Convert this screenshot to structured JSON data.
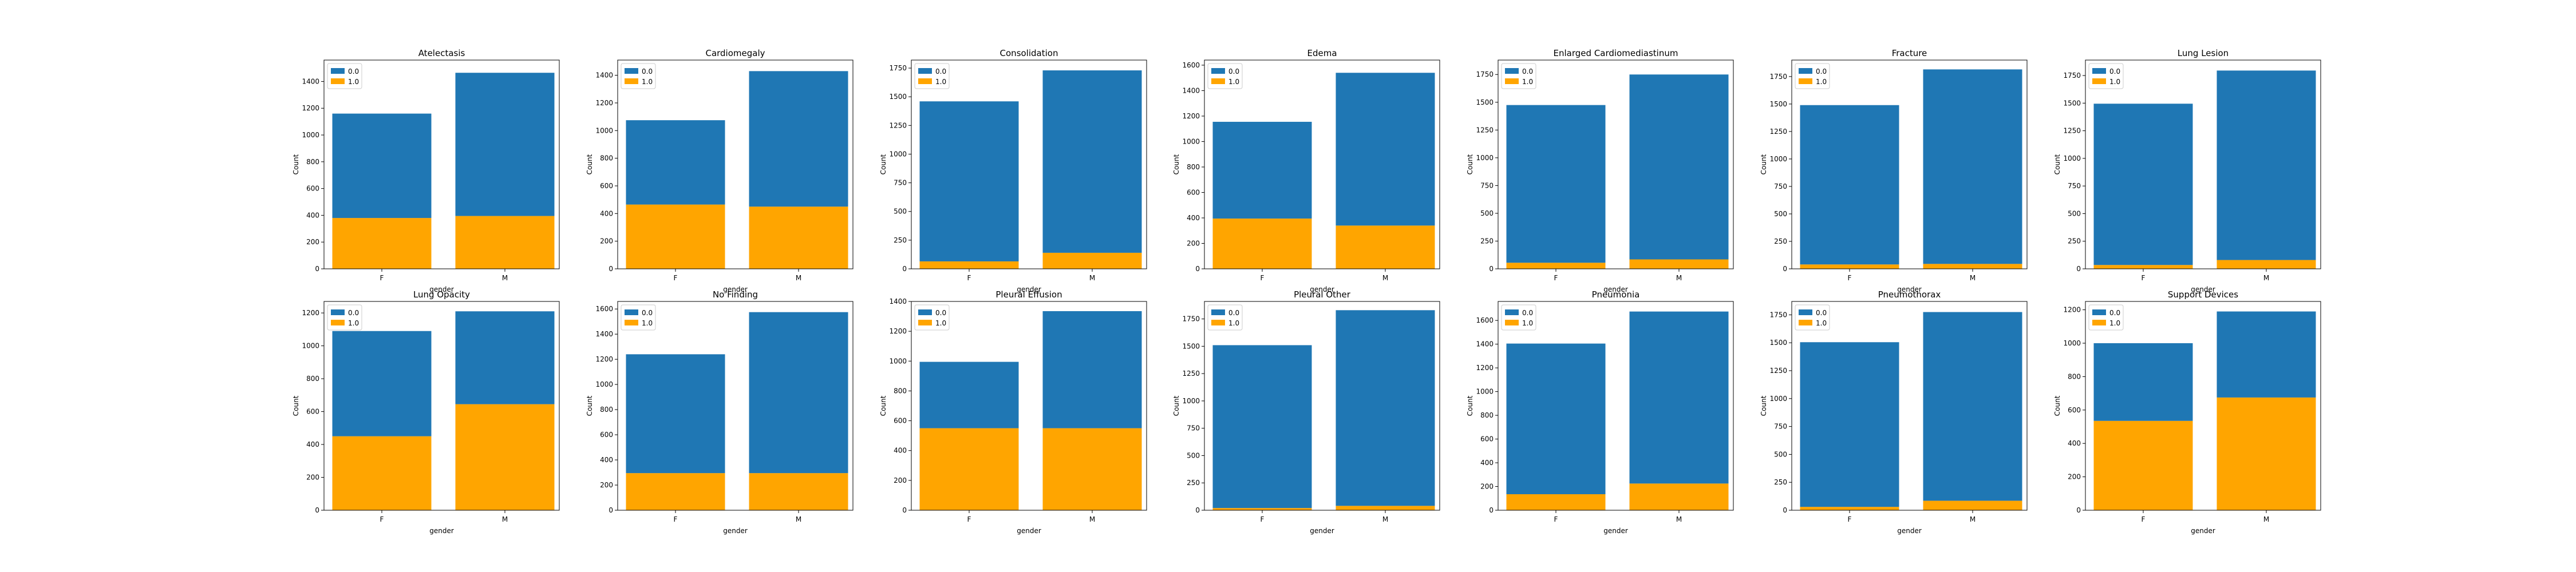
{
  "figure": {
    "common": {
      "xlabel": "gender",
      "ylabel": "Count",
      "categories": [
        "F",
        "M"
      ],
      "legend": [
        {
          "label": "0.0",
          "color": "#1f77b4"
        },
        {
          "label": "1.0",
          "color": "#ffa500"
        }
      ],
      "legend_placement": "upper-left",
      "grid": false
    }
  },
  "chart_data": [
    {
      "type": "bar",
      "stacked": true,
      "title": "Atelectasis",
      "xlabel": "gender",
      "ylabel": "Count",
      "categories": [
        "F",
        "M"
      ],
      "series": [
        {
          "name": "0.0",
          "values": [
            780,
            1070
          ],
          "color": "#1f77b4"
        },
        {
          "name": "1.0",
          "values": [
            380,
            395
          ],
          "color": "#ffa500"
        }
      ],
      "ylim": [
        0,
        1560
      ],
      "yticks": [
        0,
        200,
        400,
        600,
        800,
        1000,
        1200,
        1400
      ]
    },
    {
      "type": "bar",
      "stacked": true,
      "title": "Cardiomegaly",
      "xlabel": "gender",
      "ylabel": "Count",
      "categories": [
        "F",
        "M"
      ],
      "series": [
        {
          "name": "0.0",
          "values": [
            610,
            980
          ],
          "color": "#1f77b4"
        },
        {
          "name": "1.0",
          "values": [
            465,
            450
          ],
          "color": "#ffa500"
        }
      ],
      "ylim": [
        0,
        1510
      ],
      "yticks": [
        0,
        200,
        400,
        600,
        800,
        1000,
        1200,
        1400
      ]
    },
    {
      "type": "bar",
      "stacked": true,
      "title": "Consolidation",
      "xlabel": "gender",
      "ylabel": "Count",
      "categories": [
        "F",
        "M"
      ],
      "series": [
        {
          "name": "0.0",
          "values": [
            1395,
            1590
          ],
          "color": "#1f77b4"
        },
        {
          "name": "1.0",
          "values": [
            65,
            140
          ],
          "color": "#ffa500"
        }
      ],
      "ylim": [
        0,
        1820
      ],
      "yticks": [
        0,
        250,
        500,
        750,
        1000,
        1250,
        1500,
        1750
      ]
    },
    {
      "type": "bar",
      "stacked": true,
      "title": "Edema",
      "xlabel": "gender",
      "ylabel": "Count",
      "categories": [
        "F",
        "M"
      ],
      "series": [
        {
          "name": "0.0",
          "values": [
            760,
            1200
          ],
          "color": "#1f77b4"
        },
        {
          "name": "1.0",
          "values": [
            395,
            340
          ],
          "color": "#ffa500"
        }
      ],
      "ylim": [
        0,
        1640
      ],
      "yticks": [
        0,
        200,
        400,
        600,
        800,
        1000,
        1200,
        1400,
        1600
      ]
    },
    {
      "type": "bar",
      "stacked": true,
      "title": "Enlarged Cardiomediastinum",
      "xlabel": "gender",
      "ylabel": "Count",
      "categories": [
        "F",
        "M"
      ],
      "series": [
        {
          "name": "0.0",
          "values": [
            1420,
            1665
          ],
          "color": "#1f77b4"
        },
        {
          "name": "1.0",
          "values": [
            55,
            85
          ],
          "color": "#ffa500"
        }
      ],
      "ylim": [
        0,
        1880
      ],
      "yticks": [
        0,
        250,
        500,
        750,
        1000,
        1250,
        1500,
        1750
      ]
    },
    {
      "type": "bar",
      "stacked": true,
      "title": "Fracture",
      "xlabel": "gender",
      "ylabel": "Count",
      "categories": [
        "F",
        "M"
      ],
      "series": [
        {
          "name": "0.0",
          "values": [
            1450,
            1770
          ],
          "color": "#1f77b4"
        },
        {
          "name": "1.0",
          "values": [
            40,
            45
          ],
          "color": "#ffa500"
        }
      ],
      "ylim": [
        0,
        1900
      ],
      "yticks": [
        0,
        250,
        500,
        750,
        1000,
        1250,
        1500,
        1750
      ]
    },
    {
      "type": "bar",
      "stacked": true,
      "title": "Lung Lesion",
      "xlabel": "gender",
      "ylabel": "Count",
      "categories": [
        "F",
        "M"
      ],
      "series": [
        {
          "name": "0.0",
          "values": [
            1460,
            1715
          ],
          "color": "#1f77b4"
        },
        {
          "name": "1.0",
          "values": [
            35,
            80
          ],
          "color": "#ffa500"
        }
      ],
      "ylim": [
        0,
        1890
      ],
      "yticks": [
        0,
        250,
        500,
        750,
        1000,
        1250,
        1500,
        1750
      ]
    },
    {
      "type": "bar",
      "stacked": true,
      "title": "Lung Opacity",
      "xlabel": "gender",
      "ylabel": "Count",
      "categories": [
        "F",
        "M"
      ],
      "series": [
        {
          "name": "0.0",
          "values": [
            640,
            565
          ],
          "color": "#1f77b4"
        },
        {
          "name": "1.0",
          "values": [
            450,
            645
          ],
          "color": "#ffa500"
        }
      ],
      "ylim": [
        0,
        1270
      ],
      "yticks": [
        0,
        200,
        400,
        600,
        800,
        1000,
        1200
      ]
    },
    {
      "type": "bar",
      "stacked": true,
      "title": "No Finding",
      "xlabel": "gender",
      "ylabel": "Count",
      "categories": [
        "F",
        "M"
      ],
      "series": [
        {
          "name": "0.0",
          "values": [
            945,
            1280
          ],
          "color": "#1f77b4"
        },
        {
          "name": "1.0",
          "values": [
            295,
            295
          ],
          "color": "#ffa500"
        }
      ],
      "ylim": [
        0,
        1660
      ],
      "yticks": [
        0,
        200,
        400,
        600,
        800,
        1000,
        1200,
        1400,
        1600
      ]
    },
    {
      "type": "bar",
      "stacked": true,
      "title": "Pleural Effusion",
      "xlabel": "gender",
      "ylabel": "Count",
      "categories": [
        "F",
        "M"
      ],
      "series": [
        {
          "name": "0.0",
          "values": [
            445,
            785
          ],
          "color": "#1f77b4"
        },
        {
          "name": "1.0",
          "values": [
            550,
            550
          ],
          "color": "#ffa500"
        }
      ],
      "ylim": [
        0,
        1400
      ],
      "yticks": [
        0,
        200,
        400,
        600,
        800,
        1000,
        1200,
        1400
      ]
    },
    {
      "type": "bar",
      "stacked": true,
      "title": "Pleural Other",
      "xlabel": "gender",
      "ylabel": "Count",
      "categories": [
        "F",
        "M"
      ],
      "series": [
        {
          "name": "0.0",
          "values": [
            1490,
            1790
          ],
          "color": "#1f77b4"
        },
        {
          "name": "1.0",
          "values": [
            20,
            40
          ],
          "color": "#ffa500"
        }
      ],
      "ylim": [
        0,
        1910
      ],
      "yticks": [
        0,
        250,
        500,
        750,
        1000,
        1250,
        1500,
        1750
      ]
    },
    {
      "type": "bar",
      "stacked": true,
      "title": "Pneumonia",
      "xlabel": "gender",
      "ylabel": "Count",
      "categories": [
        "F",
        "M"
      ],
      "series": [
        {
          "name": "0.0",
          "values": [
            1270,
            1450
          ],
          "color": "#1f77b4"
        },
        {
          "name": "1.0",
          "values": [
            135,
            225
          ],
          "color": "#ffa500"
        }
      ],
      "ylim": [
        0,
        1760
      ],
      "yticks": [
        0,
        200,
        400,
        600,
        800,
        1000,
        1200,
        1400,
        1600
      ]
    },
    {
      "type": "bar",
      "stacked": true,
      "title": "Pneumothorax",
      "xlabel": "gender",
      "ylabel": "Count",
      "categories": [
        "F",
        "M"
      ],
      "series": [
        {
          "name": "0.0",
          "values": [
            1475,
            1690
          ],
          "color": "#1f77b4"
        },
        {
          "name": "1.0",
          "values": [
            30,
            85
          ],
          "color": "#ffa500"
        }
      ],
      "ylim": [
        0,
        1870
      ],
      "yticks": [
        0,
        250,
        500,
        750,
        1000,
        1250,
        1500,
        1750
      ]
    },
    {
      "type": "bar",
      "stacked": true,
      "title": "Support Devices",
      "xlabel": "gender",
      "ylabel": "Count",
      "categories": [
        "F",
        "M"
      ],
      "series": [
        {
          "name": "0.0",
          "values": [
            465,
            515
          ],
          "color": "#1f77b4"
        },
        {
          "name": "1.0",
          "values": [
            535,
            675
          ],
          "color": "#ffa500"
        }
      ],
      "ylim": [
        0,
        1250
      ],
      "yticks": [
        0,
        200,
        400,
        600,
        800,
        1000,
        1200
      ]
    }
  ]
}
